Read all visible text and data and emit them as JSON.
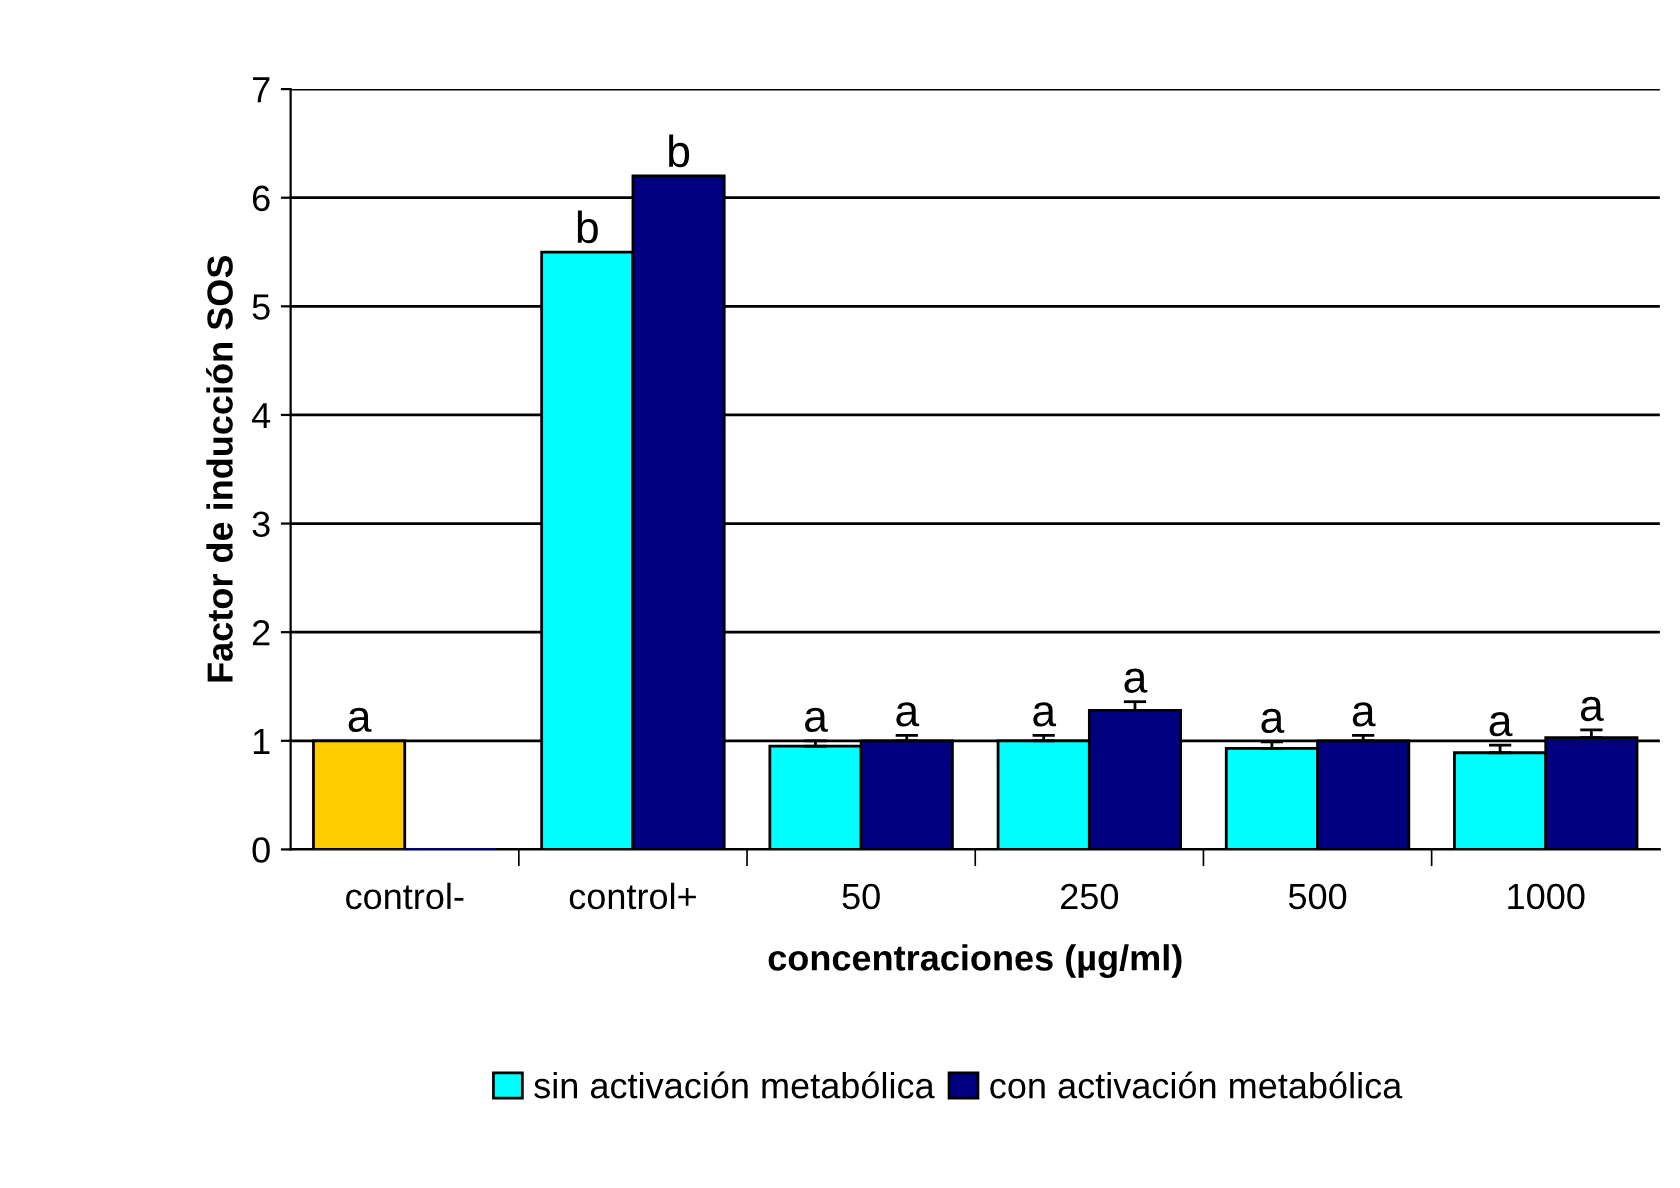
{
  "chart_data": {
    "type": "bar",
    "xlabel": "concentraciones (µg/ml)",
    "ylabel": "Factor de inducción SOS",
    "categories": [
      "control-",
      "control+",
      "50",
      "250",
      "500",
      "1000"
    ],
    "series": [
      {
        "name": "sin activación metabólica",
        "color": "#00ffff",
        "colors": [
          "#ffcc00",
          "#00ffff",
          "#00ffff",
          "#00ffff",
          "#00ffff",
          "#00ffff"
        ],
        "values": [
          1.0,
          5.5,
          0.95,
          1.0,
          0.93,
          0.89
        ],
        "errors": [
          null,
          null,
          0.05,
          0.05,
          0.06,
          0.07
        ],
        "value_labels": [
          "a",
          "b",
          "a",
          "a",
          "a",
          "a"
        ]
      },
      {
        "name": "con activación metabólica",
        "color": "#000080",
        "values": [
          0,
          6.2,
          1.0,
          1.28,
          1.0,
          1.03
        ],
        "errors": [
          null,
          null,
          0.05,
          0.08,
          0.05,
          0.07
        ],
        "value_labels": [
          null,
          "b",
          "a",
          "a",
          "a",
          "a"
        ]
      }
    ],
    "ylim": [
      0,
      7
    ],
    "yticks": [
      0,
      1,
      2,
      3,
      4,
      5,
      6,
      7
    ],
    "grid": "y",
    "legend": "bottom"
  }
}
